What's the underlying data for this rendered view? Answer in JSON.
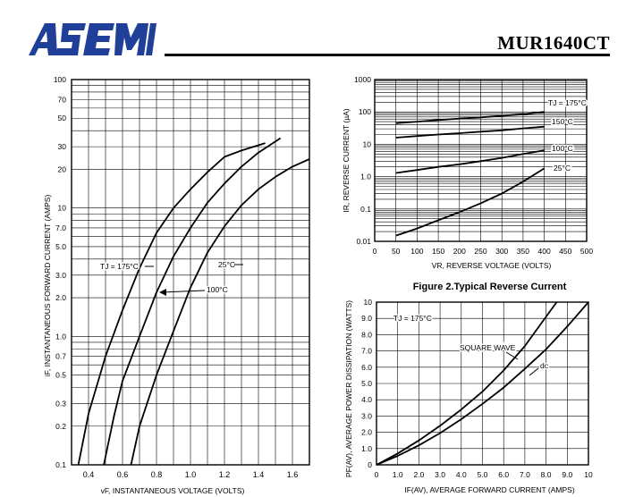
{
  "header": {
    "brand": "ASEMI",
    "part_number": "MUR1640CT"
  },
  "chart_data": [
    {
      "id": "forward",
      "type": "line",
      "title": "",
      "xlabel": "vF, INSTANTANEOUS VOLTAGE (VOLTS)",
      "ylabel": "iF, INSTANTANEOUS FORWARD CURRENT (AMPS)",
      "xlim": [
        0.3,
        1.7
      ],
      "ylim": [
        0.1,
        100
      ],
      "yscale": "log",
      "grid": true,
      "xticks": [
        "0.4",
        "0.6",
        "0.8",
        "1.0",
        "1.2",
        "1.4",
        "1.6"
      ],
      "yticks": [
        "0.1",
        "0.2",
        "0.3",
        "0.5",
        "0.7",
        "1.0",
        "2.0",
        "3.0",
        "5.0",
        "7.0",
        "10",
        "20",
        "30",
        "50",
        "70",
        "100"
      ],
      "series": [
        {
          "name": "TJ = 175°C",
          "x": [
            0.34,
            0.4,
            0.5,
            0.6,
            0.7,
            0.8,
            0.9,
            1.0,
            1.1,
            1.2,
            1.3,
            1.44
          ],
          "y": [
            0.1,
            0.25,
            0.7,
            1.6,
            3.4,
            6.4,
            10,
            14,
            19,
            25,
            28,
            32
          ]
        },
        {
          "name": "100°C",
          "x": [
            0.49,
            0.55,
            0.6,
            0.7,
            0.8,
            0.9,
            1.0,
            1.1,
            1.2,
            1.3,
            1.4,
            1.53
          ],
          "y": [
            0.1,
            0.24,
            0.45,
            1.0,
            2.2,
            4.2,
            7.0,
            11,
            15.5,
            21,
            27,
            35
          ]
        },
        {
          "name": "25°C",
          "x": [
            0.65,
            0.7,
            0.8,
            0.9,
            1.0,
            1.1,
            1.2,
            1.3,
            1.4,
            1.5,
            1.6,
            1.7
          ],
          "y": [
            0.1,
            0.2,
            0.5,
            1.1,
            2.4,
            4.5,
            7.2,
            10.5,
            14,
            17.5,
            21,
            24
          ]
        }
      ],
      "annotations": [
        "TJ = 175°C",
        "100°C",
        "25°C"
      ]
    },
    {
      "id": "reverse",
      "type": "line",
      "title": "Figure 2.Typical Reverse Current",
      "xlabel": "VR, REVERSE VOLTAGE (VOLTS)",
      "ylabel": "IR, REVERSE CURRENT (µA)",
      "xlim": [
        0,
        500
      ],
      "ylim": [
        0.01,
        1000
      ],
      "yscale": "log",
      "grid": true,
      "xticks": [
        "0",
        "50",
        "100",
        "150",
        "200",
        "250",
        "300",
        "350",
        "400",
        "450",
        "500"
      ],
      "yticks": [
        "0.01",
        "0.1",
        "1.0",
        "10",
        "100",
        "1000"
      ],
      "series": [
        {
          "name": "TJ = 175°C",
          "x": [
            50,
            100,
            150,
            200,
            250,
            300,
            350,
            400
          ],
          "y": [
            45,
            50,
            56,
            62,
            68,
            76,
            85,
            100
          ]
        },
        {
          "name": "150°C",
          "x": [
            50,
            100,
            150,
            200,
            250,
            300,
            350,
            400
          ],
          "y": [
            16,
            18,
            20,
            22,
            24.5,
            27,
            31,
            35
          ]
        },
        {
          "name": "100°C",
          "x": [
            50,
            100,
            150,
            200,
            250,
            300,
            350,
            400
          ],
          "y": [
            1.3,
            1.6,
            2.0,
            2.4,
            3.0,
            3.8,
            5.0,
            6.5
          ]
        },
        {
          "name": "25°C",
          "x": [
            50,
            100,
            150,
            200,
            250,
            300,
            350,
            400
          ],
          "y": [
            0.015,
            0.025,
            0.045,
            0.08,
            0.15,
            0.3,
            0.7,
            1.8
          ]
        }
      ],
      "annotations": [
        "TJ = 175°C",
        "150°C",
        "100°C",
        "25°C"
      ]
    },
    {
      "id": "power",
      "type": "line",
      "title": "",
      "xlabel": "IF(AV), AVERAGE FORWARD CURRENT (AMPS)",
      "ylabel": "PF(AV), AVERAGE POWER DISSIPATION (WATTS)",
      "xlim": [
        0,
        10
      ],
      "ylim": [
        0,
        10
      ],
      "grid": true,
      "xticks": [
        "0",
        "1.0",
        "2.0",
        "3.0",
        "4.0",
        "5.0",
        "6.0",
        "7.0",
        "8.0",
        "9.0",
        "10"
      ],
      "yticks": [
        "0",
        "1.0",
        "2.0",
        "3.0",
        "4.0",
        "5.0",
        "6.0",
        "7.0",
        "8.0",
        "9.0",
        "10"
      ],
      "series": [
        {
          "name": "SQUARE WAVE",
          "x": [
            0,
            1,
            2,
            3,
            4,
            5,
            6,
            7,
            8,
            8.5
          ],
          "y": [
            0,
            0.7,
            1.5,
            2.4,
            3.4,
            4.5,
            5.8,
            7.3,
            9.1,
            10
          ]
        },
        {
          "name": "dc",
          "x": [
            0,
            1,
            2,
            3,
            4,
            5,
            6,
            7,
            8,
            9,
            10
          ],
          "y": [
            0,
            0.55,
            1.2,
            1.95,
            2.8,
            3.75,
            4.75,
            5.9,
            7.1,
            8.5,
            10
          ]
        }
      ],
      "annotations": [
        "TJ = 175°C",
        "SQUARE WAVE",
        "dc"
      ]
    }
  ]
}
